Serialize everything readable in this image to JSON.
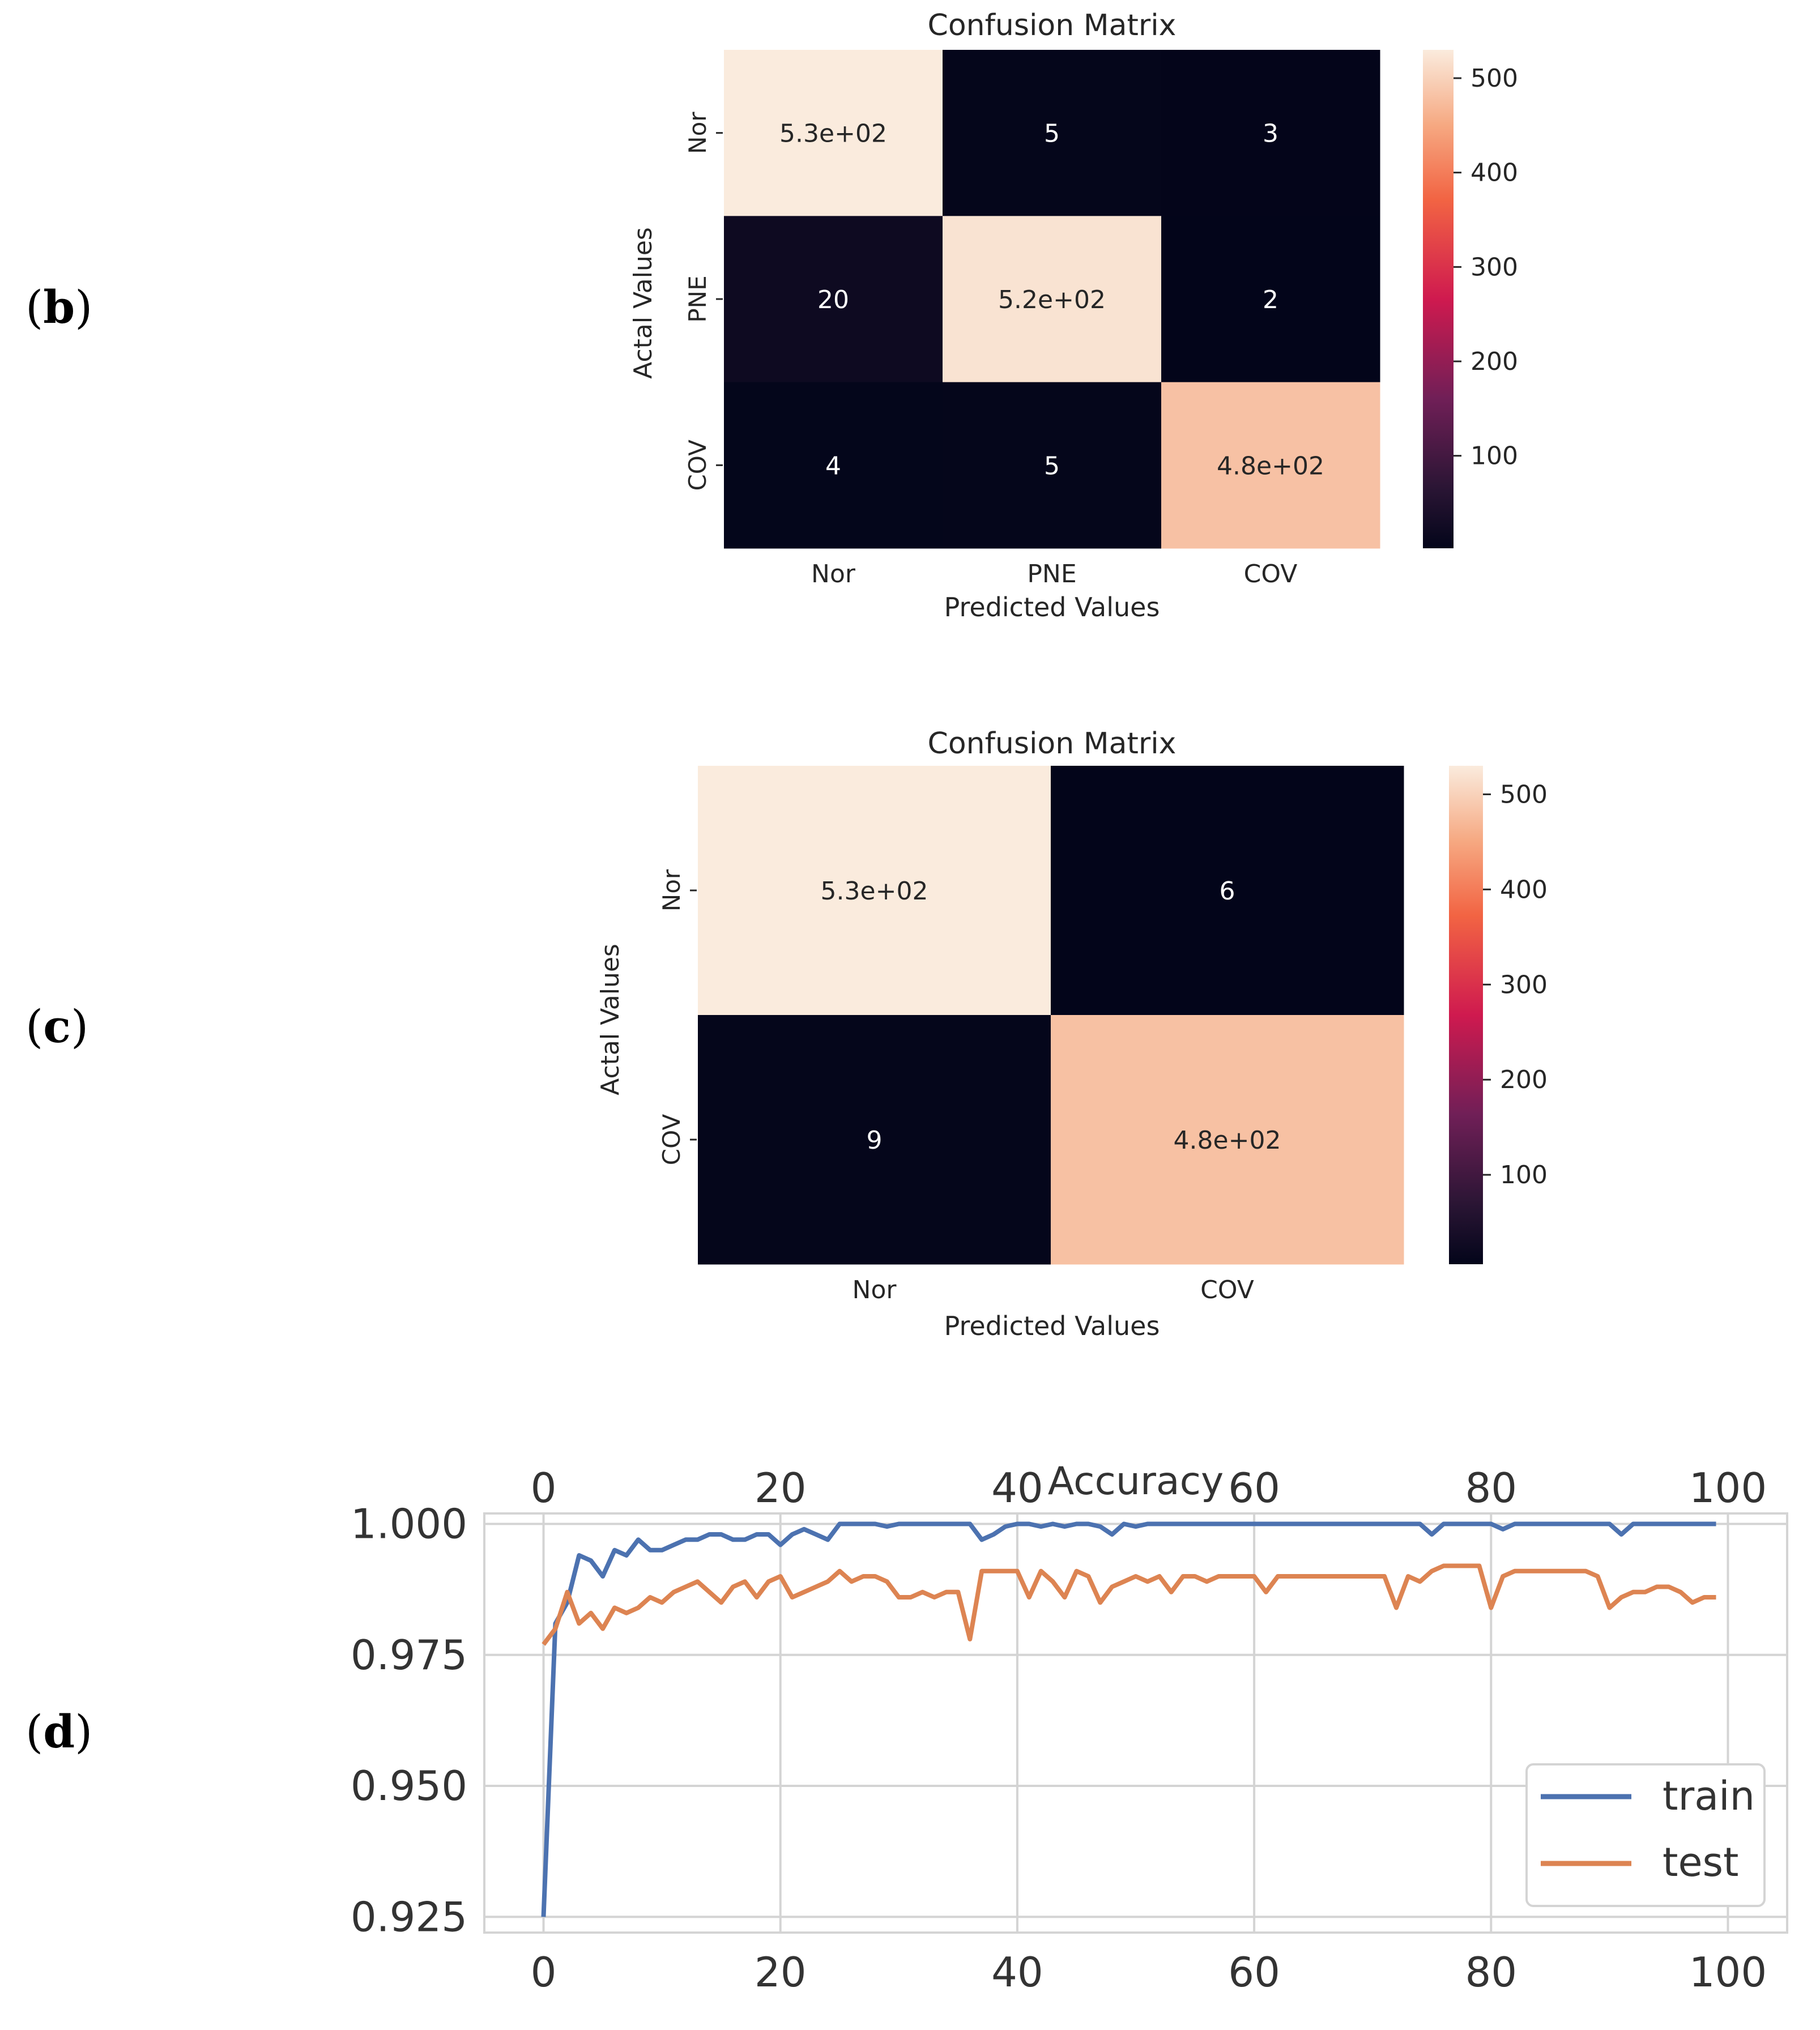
{
  "panel_labels": [
    "b",
    "c",
    "d"
  ],
  "chart_data": [
    {
      "type": "heatmap",
      "panel": "b",
      "title": "Confusion Matrix",
      "xlabel": "Predicted Values",
      "ylabel": "Actal Values",
      "x_categories": [
        "Nor",
        "PNE",
        "COV"
      ],
      "y_categories": [
        "Nor",
        "PNE",
        "COV"
      ],
      "values": [
        [
          530,
          5,
          3
        ],
        [
          20,
          520,
          2
        ],
        [
          4,
          5,
          480
        ]
      ],
      "annotations": [
        [
          "5.3e+02",
          "5",
          "3"
        ],
        [
          "20",
          "5.2e+02",
          "2"
        ],
        [
          "4",
          "5",
          "4.8e+02"
        ]
      ],
      "colorbar": {
        "ticks": [
          100,
          200,
          300,
          400,
          500
        ],
        "range": [
          2,
          530
        ]
      }
    },
    {
      "type": "heatmap",
      "panel": "c",
      "title": "Confusion Matrix",
      "xlabel": "Predicted Values",
      "ylabel": "Actal Values",
      "x_categories": [
        "Nor",
        "COV"
      ],
      "y_categories": [
        "Nor",
        "COV"
      ],
      "values": [
        [
          530,
          6
        ],
        [
          9,
          480
        ]
      ],
      "annotations": [
        [
          "5.3e+02",
          "6"
        ],
        [
          "9",
          "4.8e+02"
        ]
      ],
      "colorbar": {
        "ticks": [
          100,
          200,
          300,
          400,
          500
        ],
        "range": [
          6,
          530
        ]
      }
    },
    {
      "type": "line",
      "panel": "d",
      "title": "Accuracy",
      "xlabel": "",
      "ylabel": "",
      "xlim": [
        -5,
        105
      ],
      "ylim": [
        0.922,
        1.002
      ],
      "xticks": [
        0,
        20,
        40,
        60,
        80,
        100
      ],
      "yticks": [
        0.925,
        0.95,
        0.975,
        1.0
      ],
      "ytick_labels": [
        "0.925",
        "0.950",
        "0.975",
        "1.000"
      ],
      "grid": true,
      "legend": "lower-right",
      "series": [
        {
          "name": "train",
          "color": "#4c72b0",
          "x": [
            0,
            1,
            2,
            3,
            4,
            5,
            6,
            7,
            8,
            9,
            10,
            11,
            12,
            13,
            14,
            15,
            16,
            17,
            18,
            19,
            20,
            21,
            22,
            23,
            24,
            25,
            26,
            27,
            28,
            29,
            30,
            31,
            32,
            33,
            34,
            35,
            36,
            37,
            38,
            39,
            40,
            41,
            42,
            43,
            44,
            45,
            46,
            47,
            48,
            49,
            50,
            51,
            52,
            53,
            54,
            55,
            56,
            57,
            58,
            59,
            60,
            61,
            62,
            63,
            64,
            65,
            66,
            67,
            68,
            69,
            70,
            71,
            72,
            73,
            74,
            75,
            76,
            77,
            78,
            79,
            80,
            81,
            82,
            83,
            84,
            85,
            86,
            87,
            88,
            89,
            90,
            91,
            92,
            93,
            94,
            95,
            96,
            97,
            98,
            99
          ],
          "y": [
            0.925,
            0.981,
            0.985,
            0.994,
            0.993,
            0.99,
            0.995,
            0.994,
            0.997,
            0.995,
            0.995,
            0.996,
            0.997,
            0.997,
            0.998,
            0.998,
            0.997,
            0.997,
            0.998,
            0.998,
            0.996,
            0.998,
            0.999,
            0.998,
            0.997,
            1.0,
            1.0,
            1.0,
            1.0,
            0.9995,
            1.0,
            1.0,
            1.0,
            1.0,
            1.0,
            1.0,
            1.0,
            0.997,
            0.998,
            0.9995,
            1.0,
            1.0,
            0.9995,
            1.0,
            0.9995,
            1.0,
            1.0,
            0.9995,
            0.998,
            1.0,
            0.9995,
            1.0,
            1.0,
            1.0,
            1.0,
            1.0,
            1.0,
            1.0,
            1.0,
            1.0,
            1.0,
            1.0,
            1.0,
            1.0,
            1.0,
            1.0,
            1.0,
            1.0,
            1.0,
            1.0,
            1.0,
            1.0,
            1.0,
            1.0,
            1.0,
            0.998,
            1.0,
            1.0,
            1.0,
            1.0,
            1.0,
            0.999,
            1.0,
            1.0,
            1.0,
            1.0,
            1.0,
            1.0,
            1.0,
            1.0,
            1.0,
            0.998,
            1.0,
            1.0,
            1.0,
            1.0,
            1.0,
            1.0,
            1.0,
            1.0
          ]
        },
        {
          "name": "test",
          "color": "#dd8452",
          "x": [
            0,
            1,
            2,
            3,
            4,
            5,
            6,
            7,
            8,
            9,
            10,
            11,
            12,
            13,
            14,
            15,
            16,
            17,
            18,
            19,
            20,
            21,
            22,
            23,
            24,
            25,
            26,
            27,
            28,
            29,
            30,
            31,
            32,
            33,
            34,
            35,
            36,
            37,
            38,
            39,
            40,
            41,
            42,
            43,
            44,
            45,
            46,
            47,
            48,
            49,
            50,
            51,
            52,
            53,
            54,
            55,
            56,
            57,
            58,
            59,
            60,
            61,
            62,
            63,
            64,
            65,
            66,
            67,
            68,
            69,
            70,
            71,
            72,
            73,
            74,
            75,
            76,
            77,
            78,
            79,
            80,
            81,
            82,
            83,
            84,
            85,
            86,
            87,
            88,
            89,
            90,
            91,
            92,
            93,
            94,
            95,
            96,
            97,
            98,
            99
          ],
          "y": [
            0.977,
            0.98,
            0.987,
            0.981,
            0.983,
            0.98,
            0.984,
            0.983,
            0.984,
            0.986,
            0.985,
            0.987,
            0.988,
            0.989,
            0.987,
            0.985,
            0.988,
            0.989,
            0.986,
            0.989,
            0.99,
            0.986,
            0.987,
            0.988,
            0.989,
            0.991,
            0.989,
            0.99,
            0.99,
            0.989,
            0.986,
            0.986,
            0.987,
            0.986,
            0.987,
            0.987,
            0.978,
            0.991,
            0.991,
            0.991,
            0.991,
            0.986,
            0.991,
            0.989,
            0.986,
            0.991,
            0.99,
            0.985,
            0.988,
            0.989,
            0.99,
            0.989,
            0.99,
            0.987,
            0.99,
            0.99,
            0.989,
            0.99,
            0.99,
            0.99,
            0.99,
            0.987,
            0.99,
            0.99,
            0.99,
            0.99,
            0.99,
            0.99,
            0.99,
            0.99,
            0.99,
            0.99,
            0.984,
            0.99,
            0.989,
            0.991,
            0.992,
            0.992,
            0.992,
            0.992,
            0.984,
            0.99,
            0.991,
            0.991,
            0.991,
            0.991,
            0.991,
            0.991,
            0.991,
            0.99,
            0.984,
            0.986,
            0.987,
            0.987,
            0.988,
            0.988,
            0.987,
            0.985,
            0.986,
            0.986
          ]
        }
      ]
    }
  ]
}
